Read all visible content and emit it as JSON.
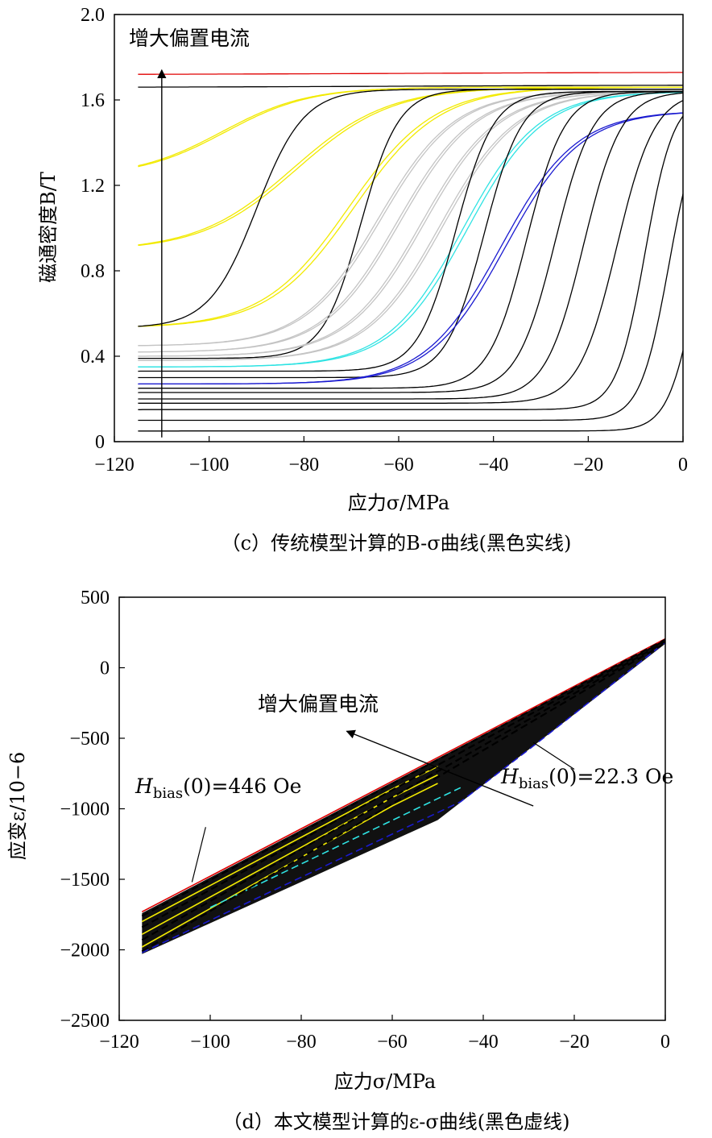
{
  "colors": {
    "black": "#000000",
    "red": "#e00000",
    "yellow": "#f2ea00",
    "gray": "#c4c4c4",
    "cyan": "#2fe3e3",
    "blue": "#1a1ad0"
  },
  "chart_data": [
    {
      "type": "line",
      "panel": "c",
      "caption": "（c）传统模型计算的B-σ曲线(黑色实线)",
      "xlabel": "应力σ/MPa",
      "ylabel": "磁通密度B/T",
      "annotation": "增大偏置电流",
      "xlim": [
        -120,
        0
      ],
      "ylim": [
        0,
        2.0
      ],
      "xticks": [
        -120,
        -100,
        -80,
        -60,
        -40,
        -20,
        0
      ],
      "yticks": [
        0,
        0.4,
        0.8,
        1.2,
        1.6,
        2.0
      ],
      "xtick_labels": [
        "−120",
        "−100",
        "−80",
        "−60",
        "−40",
        "−20",
        "0"
      ],
      "ytick_labels": [
        "0",
        "0.4",
        "0.8",
        "1.2",
        "1.6",
        "2.0"
      ],
      "arrow": {
        "x": -110,
        "y_from": 0.02,
        "y_to": 1.74
      },
      "series": [
        {
          "color": "red",
          "x0": -115,
          "b0": 1.72,
          "bsat": 1.73,
          "sc": -60,
          "w": 30,
          "loop": 0
        },
        {
          "color": "black",
          "x0": -115,
          "b0": 1.66,
          "bsat": 1.67,
          "sc": -60,
          "w": 30,
          "loop": 0
        },
        {
          "color": "yellow",
          "x0": -115,
          "b0": 1.29,
          "bsat": 1.66,
          "sc": -97,
          "w": 9,
          "loop": 0.025
        },
        {
          "color": "yellow",
          "x0": -115,
          "b0": 0.92,
          "bsat": 1.66,
          "sc": -82,
          "w": 10,
          "loop": 0.03
        },
        {
          "color": "yellow",
          "x0": -115,
          "b0": 0.54,
          "bsat": 1.66,
          "sc": -70,
          "w": 9,
          "loop": 0.035
        },
        {
          "color": "black",
          "x0": -115,
          "b0": 0.54,
          "bsat": 1.65,
          "sc": -90,
          "w": 5,
          "loop": 0
        },
        {
          "color": "black",
          "x0": -115,
          "b0": 0.39,
          "bsat": 1.65,
          "sc": -68,
          "w": 4,
          "loop": 0
        },
        {
          "color": "gray",
          "x0": -115,
          "b0": 0.45,
          "bsat": 1.64,
          "sc": -64,
          "w": 8,
          "loop": 0.02
        },
        {
          "color": "gray",
          "x0": -115,
          "b0": 0.42,
          "bsat": 1.64,
          "sc": -60,
          "w": 8,
          "loop": 0.02
        },
        {
          "color": "gray",
          "x0": -115,
          "b0": 0.4,
          "bsat": 1.64,
          "sc": -55,
          "w": 8,
          "loop": 0.02
        },
        {
          "color": "gray",
          "x0": -115,
          "b0": 0.38,
          "bsat": 1.64,
          "sc": -51,
          "w": 8,
          "loop": 0.02
        },
        {
          "color": "cyan",
          "x0": -115,
          "b0": 0.35,
          "bsat": 1.64,
          "sc": -46,
          "w": 8,
          "loop": 0.03
        },
        {
          "color": "black",
          "x0": -115,
          "b0": 0.33,
          "bsat": 1.64,
          "sc": -48,
          "w": 4,
          "loop": 0
        },
        {
          "color": "black",
          "x0": -115,
          "b0": 0.3,
          "bsat": 1.64,
          "sc": -42,
          "w": 4,
          "loop": 0
        },
        {
          "color": "blue",
          "x0": -115,
          "b0": 0.27,
          "bsat": 1.55,
          "sc": -38,
          "w": 8,
          "loop": 0.03
        },
        {
          "color": "black",
          "x0": -115,
          "b0": 0.25,
          "bsat": 1.64,
          "sc": -33,
          "w": 4,
          "loop": 0
        },
        {
          "color": "black",
          "x0": -115,
          "b0": 0.23,
          "bsat": 1.64,
          "sc": -27,
          "w": 4,
          "loop": 0
        },
        {
          "color": "black",
          "x0": -115,
          "b0": 0.2,
          "bsat": 1.64,
          "sc": -21,
          "w": 4,
          "loop": 0
        },
        {
          "color": "black",
          "x0": -115,
          "b0": 0.18,
          "bsat": 1.64,
          "sc": -14,
          "w": 4,
          "loop": 0
        },
        {
          "color": "black",
          "x0": -115,
          "b0": 0.15,
          "bsat": 1.62,
          "sc": -8,
          "w": 3,
          "loop": 0
        },
        {
          "color": "black",
          "x0": -115,
          "b0": 0.1,
          "bsat": 1.55,
          "sc": -3,
          "w": 3,
          "loop": 0
        },
        {
          "color": "black",
          "x0": -115,
          "b0": 0.05,
          "bsat": 1.45,
          "sc": 3,
          "w": 3,
          "loop": 0
        }
      ]
    },
    {
      "type": "line",
      "panel": "d",
      "caption": "（d）本文模型计算的ε-σ曲线(黑色虚线)",
      "xlabel": "应力σ/MPa",
      "ylabel": "应变ε/10−6",
      "annotation": "增大偏置电流",
      "label_left": "Hbias(0)=446 Oe",
      "label_right": "Hbias(0)=22.3 Oe",
      "xlim": [
        -120,
        0
      ],
      "ylim": [
        -2500,
        500
      ],
      "xticks": [
        -120,
        -100,
        -80,
        -60,
        -40,
        -20,
        0
      ],
      "yticks": [
        -2500,
        -2000,
        -1500,
        -1000,
        -500,
        0,
        500
      ],
      "xtick_labels": [
        "−120",
        "−100",
        "−80",
        "−60",
        "−40",
        "−20",
        "0"
      ],
      "ytick_labels": [
        "−2500",
        "−2000",
        "−1500",
        "−1000",
        "−500",
        "0",
        "500"
      ],
      "band": {
        "x_start": -115,
        "x_end": 0,
        "upper_start": -1740,
        "lower_start": -2030,
        "upper_end": 200,
        "lower_end": 170
      },
      "series": [
        {
          "color": "red",
          "style": "solid",
          "x": [
            -115,
            0
          ],
          "y": [
            -1730,
            205
          ]
        },
        {
          "color": "yellow",
          "style": "solid",
          "x": [
            -115,
            -60,
            -50
          ],
          "y": [
            -1800,
            -860,
            -700
          ]
        },
        {
          "color": "yellow",
          "style": "solid",
          "x": [
            -115,
            -60,
            -50
          ],
          "y": [
            -1890,
            -920,
            -760
          ]
        },
        {
          "color": "yellow",
          "style": "solid",
          "x": [
            -115,
            -60,
            -50
          ],
          "y": [
            -1980,
            -980,
            -820
          ]
        },
        {
          "color": "cyan",
          "style": "dashed",
          "x": [
            -100,
            -45
          ],
          "y": [
            -1700,
            -850
          ]
        },
        {
          "color": "blue",
          "style": "dashed",
          "x": [
            -115,
            -45,
            -30,
            0
          ],
          "y": [
            -2020,
            -950,
            -580,
            180
          ]
        },
        {
          "color": "black",
          "style": "dashed",
          "x": [
            -115,
            0
          ],
          "y": [
            -1760,
            200
          ]
        },
        {
          "color": "black",
          "style": "dashed",
          "x": [
            -115,
            0
          ],
          "y": [
            -1840,
            195
          ]
        },
        {
          "color": "black",
          "style": "dashed",
          "x": [
            -115,
            0
          ],
          "y": [
            -1930,
            185
          ]
        },
        {
          "color": "black",
          "style": "dashed",
          "x": [
            -115,
            0
          ],
          "y": [
            -2010,
            175
          ]
        }
      ]
    }
  ]
}
